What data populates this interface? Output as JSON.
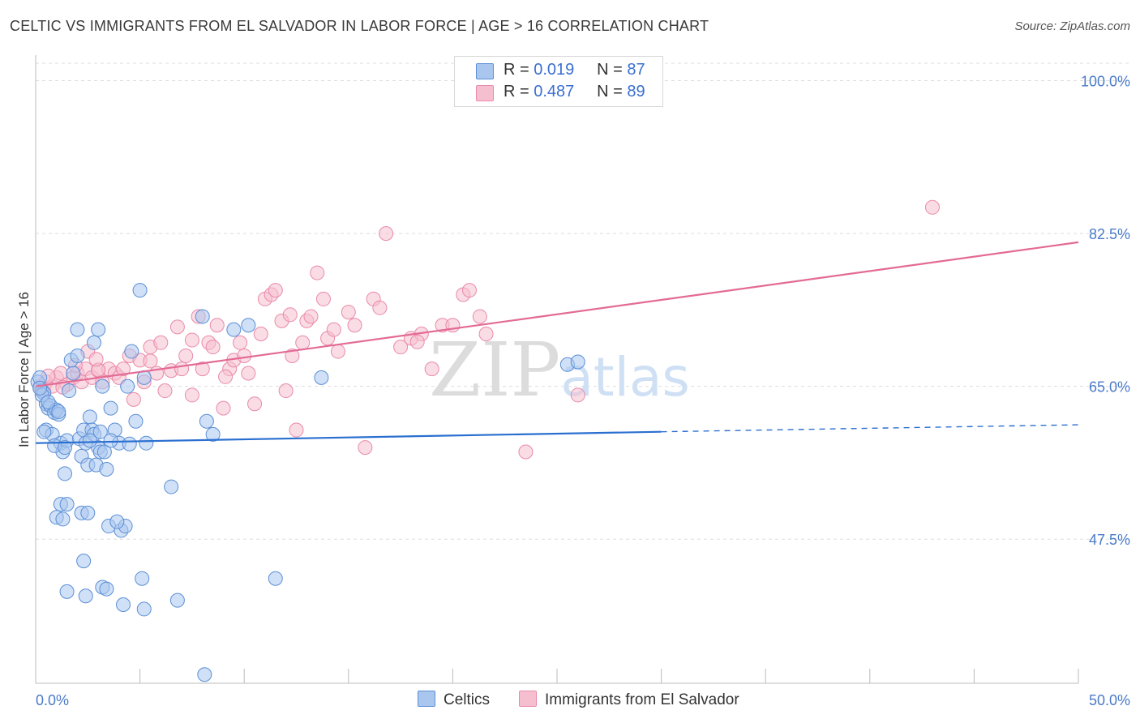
{
  "header": {
    "title": "CELTIC VS IMMIGRANTS FROM EL SALVADOR IN LABOR FORCE | AGE > 16 CORRELATION CHART",
    "source": "Source: ZipAtlas.com"
  },
  "legend": {
    "rows": [
      {
        "r_label": "R =",
        "r_value": "0.019",
        "n_label": "N =",
        "n_value": "87"
      },
      {
        "r_label": "R =",
        "r_value": "0.487",
        "n_label": "N =",
        "n_value": "89"
      }
    ]
  },
  "colors": {
    "celtics_fill": "#a9c6ee",
    "celtics_stroke": "#5b8fd6",
    "celtics_line": "#2a6fd0",
    "salvador_fill": "#f6bfd0",
    "salvador_stroke": "#e98aaa",
    "salvador_line": "#e36a95"
  },
  "chart_data": {
    "type": "scatter",
    "title": "CELTIC VS IMMIGRANTS FROM EL SALVADOR IN LABOR FORCE | AGE > 16 CORRELATION CHART",
    "xlabel": "",
    "ylabel": "In Labor Force | Age > 16",
    "x_unit": "percent",
    "xlim": [
      0,
      50
    ],
    "ylim": [
      31,
      102
    ],
    "x_tick_labels": [
      "0.0%",
      "50.0%"
    ],
    "y_ticks": [
      47.5,
      65.0,
      82.5,
      100.0
    ],
    "y_tick_labels": [
      "47.5%",
      "65.0%",
      "82.5%",
      "100.0%"
    ],
    "grid": true,
    "watermark": {
      "zip": "ZIP",
      "atlas": "atlas"
    },
    "series": [
      {
        "name": "Celtics",
        "r": 0.019,
        "n": 87,
        "trend": {
          "x0": 0,
          "y0": 58.5,
          "x1": 30,
          "y1": 59.8,
          "dash_x1": 50,
          "dash_y1": 60.6
        },
        "points": [
          [
            0.1,
            65.5
          ],
          [
            0.2,
            66.0
          ],
          [
            0.3,
            64.5
          ],
          [
            0.4,
            64.2
          ],
          [
            0.5,
            63.0
          ],
          [
            0.6,
            62.5
          ],
          [
            0.7,
            62.8
          ],
          [
            0.5,
            60.0
          ],
          [
            0.8,
            59.5
          ],
          [
            0.9,
            62.0
          ],
          [
            1.0,
            62.3
          ],
          [
            1.1,
            61.8
          ],
          [
            1.2,
            58.5
          ],
          [
            1.3,
            57.5
          ],
          [
            1.4,
            55.0
          ],
          [
            1.5,
            58.8
          ],
          [
            1.6,
            64.5
          ],
          [
            1.8,
            66.5
          ],
          [
            1.7,
            68.0
          ],
          [
            2.0,
            68.5
          ],
          [
            2.1,
            59.0
          ],
          [
            2.2,
            57.0
          ],
          [
            2.3,
            60.0
          ],
          [
            2.4,
            58.5
          ],
          [
            2.5,
            56.0
          ],
          [
            2.6,
            61.5
          ],
          [
            2.7,
            60.0
          ],
          [
            2.8,
            59.5
          ],
          [
            2.9,
            56.0
          ],
          [
            3.0,
            58.0
          ],
          [
            3.1,
            57.5
          ],
          [
            3.2,
            65.0
          ],
          [
            3.3,
            57.5
          ],
          [
            3.4,
            55.5
          ],
          [
            3.5,
            49.0
          ],
          [
            3.6,
            62.5
          ],
          [
            3.8,
            60.0
          ],
          [
            4.0,
            58.5
          ],
          [
            4.1,
            48.5
          ],
          [
            4.3,
            49.0
          ],
          [
            4.4,
            65.0
          ],
          [
            4.6,
            69.0
          ],
          [
            4.8,
            61.0
          ],
          [
            5.0,
            76.0
          ],
          [
            5.2,
            66.0
          ],
          [
            5.3,
            58.5
          ],
          [
            6.5,
            53.5
          ],
          [
            6.8,
            40.5
          ],
          [
            8.0,
            73.0
          ],
          [
            8.2,
            61.0
          ],
          [
            8.5,
            59.5
          ],
          [
            9.5,
            71.5
          ],
          [
            10.2,
            72.0
          ],
          [
            11.5,
            43.0
          ],
          [
            13.7,
            66.0
          ],
          [
            2.0,
            71.5
          ],
          [
            3.0,
            71.5
          ],
          [
            2.8,
            70.0
          ],
          [
            1.2,
            51.5
          ],
          [
            1.5,
            51.5
          ],
          [
            1.0,
            50.0
          ],
          [
            1.3,
            49.8
          ],
          [
            2.2,
            50.5
          ],
          [
            2.5,
            50.5
          ],
          [
            2.3,
            45.0
          ],
          [
            1.5,
            41.5
          ],
          [
            2.4,
            41.0
          ],
          [
            3.2,
            42.0
          ],
          [
            3.4,
            41.8
          ],
          [
            4.2,
            40.0
          ],
          [
            5.1,
            43.0
          ],
          [
            5.2,
            39.5
          ],
          [
            8.1,
            32.0
          ],
          [
            0.3,
            64.0
          ],
          [
            0.6,
            63.2
          ],
          [
            1.1,
            62.1
          ],
          [
            0.4,
            59.8
          ],
          [
            0.2,
            64.8
          ],
          [
            0.9,
            58.2
          ],
          [
            1.4,
            58.0
          ],
          [
            2.6,
            58.8
          ],
          [
            3.1,
            59.8
          ],
          [
            3.6,
            58.8
          ],
          [
            4.5,
            58.4
          ],
          [
            3.9,
            49.5
          ],
          [
            25.5,
            67.5
          ],
          [
            26.0,
            67.8
          ]
        ]
      },
      {
        "name": "Immigrants from El Salvador",
        "r": 0.487,
        "n": 89,
        "trend": {
          "x0": 0,
          "y0": 65.0,
          "x1": 50,
          "y1": 81.5
        },
        "points": [
          [
            0.2,
            65.0
          ],
          [
            0.4,
            64.5
          ],
          [
            0.5,
            65.5
          ],
          [
            0.8,
            65.0
          ],
          [
            1.0,
            66.0
          ],
          [
            1.2,
            66.5
          ],
          [
            1.5,
            65.2
          ],
          [
            1.8,
            66.0
          ],
          [
            2.0,
            66.5
          ],
          [
            2.2,
            65.5
          ],
          [
            2.4,
            67.0
          ],
          [
            2.5,
            69.0
          ],
          [
            2.7,
            66.0
          ],
          [
            3.0,
            66.8
          ],
          [
            3.2,
            65.5
          ],
          [
            3.5,
            67.0
          ],
          [
            3.8,
            66.5
          ],
          [
            4.0,
            66.0
          ],
          [
            4.2,
            67.0
          ],
          [
            4.5,
            68.5
          ],
          [
            4.7,
            63.5
          ],
          [
            5.0,
            68.0
          ],
          [
            5.2,
            65.5
          ],
          [
            5.5,
            69.5
          ],
          [
            5.8,
            66.5
          ],
          [
            6.0,
            70.0
          ],
          [
            6.2,
            64.5
          ],
          [
            6.5,
            66.8
          ],
          [
            6.8,
            71.8
          ],
          [
            7.0,
            67.0
          ],
          [
            7.2,
            68.5
          ],
          [
            7.5,
            64.0
          ],
          [
            7.8,
            73.0
          ],
          [
            8.0,
            67.0
          ],
          [
            8.3,
            70.0
          ],
          [
            8.5,
            69.5
          ],
          [
            8.7,
            72.0
          ],
          [
            9.0,
            62.5
          ],
          [
            9.3,
            67.0
          ],
          [
            9.5,
            68.0
          ],
          [
            9.8,
            70.0
          ],
          [
            10.0,
            68.5
          ],
          [
            10.2,
            66.5
          ],
          [
            10.5,
            63.0
          ],
          [
            10.8,
            71.0
          ],
          [
            11.0,
            75.0
          ],
          [
            11.3,
            75.5
          ],
          [
            11.5,
            76.0
          ],
          [
            11.8,
            72.5
          ],
          [
            12.0,
            64.5
          ],
          [
            12.3,
            68.5
          ],
          [
            12.5,
            60.0
          ],
          [
            12.8,
            70.0
          ],
          [
            13.0,
            72.5
          ],
          [
            13.2,
            73.0
          ],
          [
            13.5,
            78.0
          ],
          [
            13.8,
            75.0
          ],
          [
            14.0,
            70.5
          ],
          [
            14.5,
            69.0
          ],
          [
            15.0,
            73.5
          ],
          [
            15.3,
            72.0
          ],
          [
            15.8,
            58.0
          ],
          [
            16.2,
            75.0
          ],
          [
            16.5,
            74.0
          ],
          [
            16.8,
            82.5
          ],
          [
            17.5,
            69.5
          ],
          [
            18.0,
            70.5
          ],
          [
            18.5,
            71.0
          ],
          [
            19.0,
            67.0
          ],
          [
            19.5,
            72.0
          ],
          [
            20.0,
            72.0
          ],
          [
            20.5,
            75.5
          ],
          [
            20.8,
            76.0
          ],
          [
            21.3,
            73.0
          ],
          [
            21.6,
            71.0
          ],
          [
            23.5,
            57.5
          ],
          [
            26.0,
            64.0
          ],
          [
            43.0,
            85.5
          ],
          [
            3.0,
            66.9
          ],
          [
            5.5,
            67.9
          ],
          [
            7.5,
            70.3
          ],
          [
            9.1,
            66.1
          ],
          [
            12.2,
            73.2
          ],
          [
            14.3,
            71.5
          ],
          [
            18.3,
            70.1
          ],
          [
            1.3,
            64.9
          ],
          [
            2.9,
            68.1
          ],
          [
            0.6,
            66.2
          ],
          [
            1.9,
            67.4
          ]
        ]
      }
    ]
  },
  "bottom_legend": {
    "items": [
      {
        "label": "Celtics"
      },
      {
        "label": "Immigrants from El Salvador"
      }
    ]
  }
}
